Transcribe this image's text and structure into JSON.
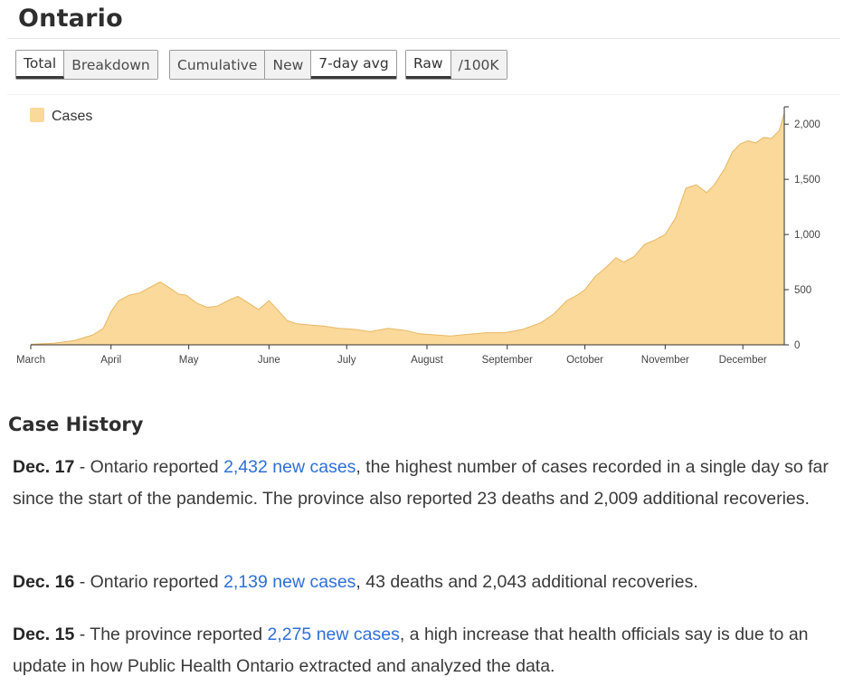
{
  "page": {
    "title": "Ontario"
  },
  "controls": {
    "group1": [
      {
        "label": "Total",
        "active": true
      },
      {
        "label": "Breakdown",
        "active": false
      }
    ],
    "group2": [
      {
        "label": "Cumulative",
        "active": false
      },
      {
        "label": "New",
        "active": false
      },
      {
        "label": "7-day avg",
        "active": true
      }
    ],
    "group3": [
      {
        "label": "Raw",
        "active": true
      },
      {
        "label": "/100K",
        "active": false
      }
    ]
  },
  "colors": {
    "area_fill": "#fad99a",
    "area_stroke": "#e8b764",
    "link": "#2e6fd8"
  },
  "chart_data": {
    "type": "area",
    "title": "",
    "xlabel": "",
    "ylabel": "",
    "legend": [
      "Cases"
    ],
    "legend_position": "top-left",
    "y_axis_position": "right",
    "ylim": [
      0,
      2100
    ],
    "y_ticks": [
      0,
      500,
      1000,
      1500,
      2000
    ],
    "y_tick_labels": [
      "0",
      "500",
      "1,000",
      "1,500",
      "2,000"
    ],
    "x_tick_labels": [
      "March",
      "April",
      "May",
      "June",
      "July",
      "August",
      "September",
      "October",
      "November",
      "December"
    ],
    "x_tick_dates": [
      "2020-03-01",
      "2020-04-01",
      "2020-05-01",
      "2020-06-01",
      "2020-07-01",
      "2020-08-01",
      "2020-09-01",
      "2020-10-01",
      "2020-11-01",
      "2020-12-01"
    ],
    "grid": false,
    "series": [
      {
        "name": "Cases",
        "x": [
          "2020-03-01",
          "2020-03-10",
          "2020-03-18",
          "2020-03-25",
          "2020-03-29",
          "2020-04-01",
          "2020-04-04",
          "2020-04-08",
          "2020-04-12",
          "2020-04-16",
          "2020-04-20",
          "2020-04-24",
          "2020-04-27",
          "2020-04-30",
          "2020-05-04",
          "2020-05-08",
          "2020-05-12",
          "2020-05-16",
          "2020-05-20",
          "2020-05-24",
          "2020-05-28",
          "2020-06-01",
          "2020-06-05",
          "2020-06-08",
          "2020-06-12",
          "2020-06-17",
          "2020-06-22",
          "2020-06-28",
          "2020-07-04",
          "2020-07-10",
          "2020-07-17",
          "2020-07-24",
          "2020-07-29",
          "2020-08-04",
          "2020-08-10",
          "2020-08-17",
          "2020-08-24",
          "2020-08-31",
          "2020-09-07",
          "2020-09-14",
          "2020-09-19",
          "2020-09-24",
          "2020-09-28",
          "2020-10-01",
          "2020-10-05",
          "2020-10-09",
          "2020-10-13",
          "2020-10-16",
          "2020-10-20",
          "2020-10-24",
          "2020-10-28",
          "2020-11-01",
          "2020-11-05",
          "2020-11-09",
          "2020-11-13",
          "2020-11-17",
          "2020-11-20",
          "2020-11-24",
          "2020-11-27",
          "2020-11-30",
          "2020-12-03",
          "2020-12-06",
          "2020-12-09",
          "2020-12-12",
          "2020-12-15",
          "2020-12-17"
        ],
        "y": [
          5,
          15,
          40,
          90,
          150,
          300,
          400,
          450,
          470,
          520,
          570,
          510,
          460,
          450,
          380,
          340,
          350,
          400,
          440,
          380,
          320,
          400,
          300,
          220,
          190,
          180,
          170,
          150,
          140,
          120,
          150,
          130,
          100,
          90,
          80,
          95,
          110,
          110,
          140,
          200,
          280,
          400,
          450,
          500,
          620,
          700,
          790,
          750,
          800,
          910,
          950,
          1000,
          1150,
          1420,
          1450,
          1380,
          1450,
          1600,
          1750,
          1820,
          1850,
          1830,
          1880,
          1870,
          1940,
          2100
        ]
      }
    ]
  },
  "history": {
    "title": "Case History",
    "entries": [
      {
        "date": "Dec. 17",
        "pre": " - Ontario reported ",
        "link": "2,432 new cases",
        "post": ", the highest number of cases recorded in a single day so far since the start of the pandemic.  The province also reported 23 deaths and 2,009 additional recoveries."
      },
      {
        "date": "Dec. 16",
        "pre": " - Ontario reported ",
        "link": "2,139 new cases",
        "post": ", 43 deaths and 2,043 additional recoveries."
      },
      {
        "date": "Dec. 15",
        "pre": " - The province reported ",
        "link": "2,275 new cases",
        "post": ", a high increase that health officials say is due to an update in how Public Health Ontario extracted and analyzed the data."
      }
    ]
  }
}
